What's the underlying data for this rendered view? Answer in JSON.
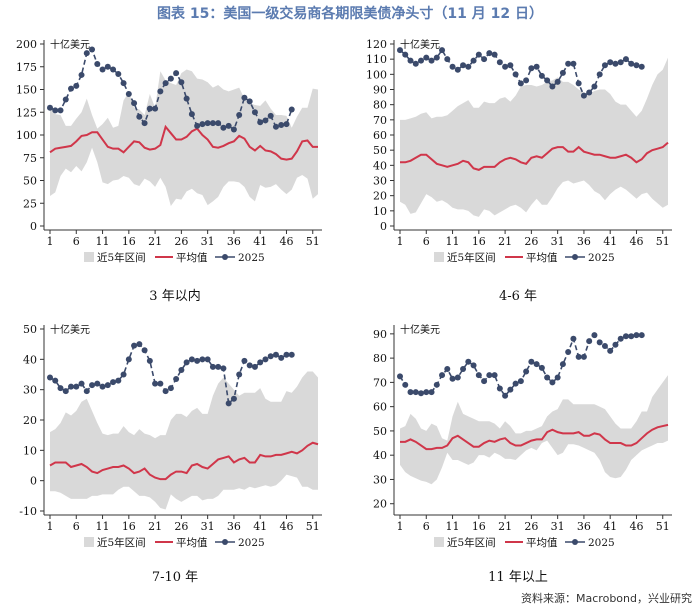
{
  "title": "图表 15：美国一级交易商各期限美债净头寸（11 月 12 日）",
  "source": "资料来源：Macrobond，兴业研究",
  "colors": {
    "band": "#d9d9d9",
    "mean": "#d0364a",
    "y2025": "#3b4a6b"
  },
  "chart_data": [
    {
      "type": "line",
      "caption": "3 年以内",
      "unit": "十亿美元",
      "ylim": [
        0,
        200
      ],
      "yticks": [
        0,
        25,
        50,
        75,
        100,
        125,
        150,
        175,
        200
      ],
      "xticks": [
        1,
        6,
        11,
        16,
        21,
        26,
        31,
        36,
        41,
        46,
        51
      ],
      "xlim": [
        1,
        52
      ],
      "legend": [
        "近5年区间",
        "平均值",
        "2025"
      ],
      "upper": [
        130,
        123,
        122,
        110,
        110,
        118,
        125,
        140,
        122,
        107,
        112,
        119,
        108,
        110,
        138,
        147,
        130,
        128,
        122,
        145,
        130,
        170,
        160,
        157,
        155,
        168,
        172,
        170,
        162,
        161,
        158,
        152,
        155,
        150,
        148,
        150,
        152,
        140,
        135,
        133,
        132,
        138,
        129,
        122,
        122,
        121,
        108,
        120,
        130,
        130,
        151,
        150
      ],
      "lower": [
        33,
        37,
        55,
        63,
        59,
        66,
        60,
        70,
        86,
        70,
        48,
        46,
        50,
        51,
        55,
        53,
        46,
        44,
        52,
        49,
        43,
        53,
        43,
        22,
        30,
        29,
        38,
        41,
        36,
        34,
        23,
        27,
        32,
        43,
        49,
        49,
        48,
        43,
        32,
        27,
        45,
        42,
        43,
        46,
        40,
        35,
        40,
        53,
        56,
        52,
        30,
        35
      ],
      "mean": [
        81,
        85,
        86,
        87,
        88,
        93,
        99,
        100,
        103,
        103,
        95,
        87,
        85,
        85,
        81,
        87,
        93,
        92,
        86,
        84,
        85,
        89,
        109,
        102,
        95,
        95,
        98,
        104,
        107,
        100,
        95,
        87,
        86,
        88,
        91,
        93,
        99,
        96,
        87,
        83,
        88,
        83,
        82,
        79,
        74,
        73,
        74,
        82,
        93,
        94,
        87,
        87
      ],
      "y2025": [
        130,
        127,
        127,
        139,
        151,
        154,
        166,
        190,
        194,
        178,
        172,
        175,
        172,
        167,
        157,
        145,
        135,
        120,
        113,
        129,
        129,
        148,
        157,
        162,
        168,
        158,
        140,
        123,
        110,
        112,
        113,
        113,
        113,
        108,
        110,
        106,
        122,
        141,
        137,
        125,
        114,
        116,
        121,
        109,
        111,
        112,
        128
      ]
    },
    {
      "type": "line",
      "caption": "4-6 年",
      "unit": "十亿美元",
      "ylim": [
        0,
        120
      ],
      "yticks": [
        0,
        10,
        20,
        30,
        40,
        50,
        60,
        70,
        80,
        90,
        100,
        110,
        120
      ],
      "xticks": [
        1,
        6,
        11,
        16,
        21,
        26,
        31,
        36,
        41,
        46,
        51
      ],
      "xlim": [
        1,
        52
      ],
      "legend": [
        "近5年区间",
        "平均值",
        "2025"
      ],
      "upper": [
        70,
        70,
        71,
        72,
        74,
        75,
        71,
        72,
        72,
        73,
        76,
        79,
        81,
        83,
        78,
        78,
        82,
        81,
        81,
        84,
        85,
        82,
        86,
        92,
        93,
        93,
        92,
        93,
        95,
        96,
        98,
        95,
        95,
        93,
        90,
        88,
        87,
        89,
        90,
        90,
        87,
        82,
        80,
        80,
        76,
        72,
        76,
        84,
        93,
        100,
        103,
        111
      ],
      "lower": [
        16,
        14,
        8,
        9,
        15,
        21,
        19,
        16,
        17,
        15,
        12,
        11,
        11,
        10,
        7,
        6,
        11,
        10,
        7,
        9,
        11,
        13,
        14,
        12,
        9,
        14,
        18,
        14,
        14,
        19,
        25,
        29,
        30,
        28,
        29,
        30,
        27,
        23,
        21,
        17,
        21,
        24,
        26,
        24,
        21,
        18,
        21,
        22,
        18,
        15,
        12,
        14
      ],
      "mean": [
        42,
        42,
        43,
        45,
        47,
        47,
        44,
        41,
        40,
        39,
        40,
        41,
        43,
        42,
        38,
        37,
        39,
        39,
        39,
        42,
        44,
        45,
        44,
        42,
        41,
        45,
        46,
        45,
        48,
        51,
        52,
        52,
        49,
        49,
        52,
        49,
        48,
        47,
        47,
        46,
        45,
        45,
        46,
        47,
        45,
        42,
        44,
        48,
        50,
        51,
        52,
        55
      ],
      "y2025": [
        116,
        113,
        109,
        107,
        109,
        111,
        109,
        111,
        116,
        110,
        105,
        103,
        106,
        105,
        109,
        113,
        110,
        114,
        113,
        108,
        105,
        106,
        100,
        94,
        96,
        104,
        105,
        99,
        96,
        92,
        95,
        101,
        107,
        107,
        94,
        86,
        88,
        92,
        100,
        106,
        108,
        107,
        108,
        110,
        107,
        106,
        105
      ]
    },
    {
      "type": "line",
      "caption": "7-10 年",
      "unit": "十亿美元",
      "ylim": [
        -10,
        50
      ],
      "yticks": [
        -10,
        0,
        10,
        20,
        30,
        40,
        50
      ],
      "xticks": [
        1,
        6,
        11,
        16,
        21,
        26,
        31,
        36,
        41,
        46,
        51
      ],
      "xlim": [
        1,
        52
      ],
      "legend": [
        "近5年区间",
        "平均值",
        "2025"
      ],
      "upper": [
        16,
        17,
        19,
        22.5,
        21.5,
        23,
        26,
        27,
        23,
        19,
        15.5,
        15,
        15.5,
        15.5,
        18,
        16,
        15,
        17,
        15.5,
        15,
        14,
        15,
        15,
        20,
        22,
        22,
        21,
        23,
        24,
        22,
        22,
        28,
        32,
        34,
        32,
        30,
        28,
        29,
        29,
        29,
        30.5,
        27,
        26,
        26,
        26,
        29.5,
        29,
        31,
        34,
        36,
        36,
        34
      ],
      "lower": [
        -3.5,
        -3.5,
        -4,
        -5,
        -6,
        -6,
        -6,
        -6,
        -5,
        -5,
        -4.5,
        -4.5,
        -4.5,
        -3,
        -2,
        -2,
        -3.5,
        -5,
        -5,
        -5.5,
        -7,
        -9,
        -9.5,
        -4.5,
        -6,
        -7,
        -6,
        -5,
        -5,
        -6.5,
        -6,
        -6,
        -5,
        -3,
        -3,
        -3,
        -2.5,
        -3,
        -2,
        -2.5,
        -2,
        -1.5,
        -2,
        -1.5,
        0,
        2,
        1.5,
        1,
        -2,
        -2,
        -3,
        -3
      ],
      "mean": [
        5,
        6,
        6,
        6,
        4.5,
        5,
        5.5,
        4.5,
        3,
        2.5,
        3.5,
        4,
        4.5,
        4.5,
        5,
        4,
        2.5,
        3,
        4,
        2,
        1,
        0.5,
        0.5,
        2,
        3,
        3,
        2.5,
        5,
        5.5,
        4.5,
        4,
        5.5,
        7,
        7.5,
        8,
        6,
        7,
        7.5,
        6,
        6,
        8.5,
        8,
        8,
        8.5,
        8.5,
        9,
        9.5,
        9,
        10,
        11.5,
        12.5,
        12
      ],
      "y2025": [
        34,
        33,
        30.5,
        29.5,
        31,
        31,
        32,
        29.5,
        31.5,
        32,
        31,
        31.5,
        32.5,
        33,
        35,
        40,
        44.5,
        45,
        43,
        39.5,
        32,
        32,
        29.5,
        30.5,
        33.5,
        36.5,
        39,
        40,
        39.5,
        40,
        40,
        37.5,
        37.5,
        37,
        25.5,
        27,
        35,
        39.5,
        38,
        37.5,
        39,
        40,
        41,
        41.5,
        40.5,
        41.5,
        41.5
      ]
    },
    {
      "type": "line",
      "caption": "11 年以上",
      "unit": "十亿美元",
      "ylim": [
        17,
        92
      ],
      "yticks": [
        20,
        30,
        40,
        50,
        60,
        70,
        80,
        90
      ],
      "xticks": [
        1,
        6,
        11,
        16,
        21,
        26,
        31,
        36,
        41,
        46,
        51
      ],
      "xlim": [
        1,
        52
      ],
      "legend": [
        "近5年区间",
        "平均值",
        "2025"
      ],
      "upper": [
        51,
        52,
        57,
        55,
        51,
        50,
        53,
        52,
        47,
        46,
        56,
        62,
        57,
        56,
        55,
        54,
        54,
        54,
        53,
        51,
        54,
        52,
        49,
        49,
        50,
        50,
        51,
        52,
        56,
        58,
        59,
        63,
        63,
        61,
        61,
        61,
        61,
        61,
        60,
        59,
        56,
        53,
        51,
        51,
        51,
        54,
        58,
        58,
        64,
        67,
        70,
        73
      ],
      "lower": [
        36,
        33,
        31.5,
        30.5,
        29.5,
        29,
        28,
        30,
        35,
        41,
        38,
        38,
        37,
        36,
        37,
        40,
        40,
        39,
        41,
        40,
        38.5,
        38.5,
        38,
        40,
        42,
        43,
        42,
        45,
        46,
        43,
        40,
        41,
        44.5,
        44.5,
        44,
        43,
        42,
        41,
        38,
        33,
        31,
        30.5,
        31,
        34,
        38,
        40,
        42,
        43,
        44,
        45,
        45,
        46
      ],
      "mean": [
        45.5,
        45.5,
        46.5,
        45.5,
        44,
        42.5,
        42.5,
        43,
        43,
        44,
        47,
        48,
        46.5,
        45,
        43.5,
        43.5,
        45,
        46,
        45.5,
        46.5,
        47,
        45,
        44,
        44,
        45,
        46,
        46.5,
        46.5,
        49.5,
        50.5,
        49.5,
        49,
        49,
        49,
        49.5,
        48,
        48,
        49,
        48.5,
        46.5,
        45,
        45,
        45,
        44,
        44,
        45,
        47,
        49,
        50.5,
        51.5,
        52,
        52.5
      ],
      "y2025": [
        72.5,
        69,
        66,
        66,
        65.5,
        66,
        66,
        69,
        73,
        75.5,
        71.5,
        72,
        75.5,
        78.5,
        77,
        73,
        70.5,
        73,
        73,
        67.5,
        64.5,
        67,
        69.5,
        70.5,
        74.5,
        78.5,
        77.5,
        76,
        72,
        70,
        72,
        77.5,
        82.5,
        88,
        80.5,
        80.5,
        87,
        89.5,
        86.5,
        85,
        83,
        85.5,
        88,
        89,
        89,
        89.5,
        89.5
      ]
    }
  ]
}
